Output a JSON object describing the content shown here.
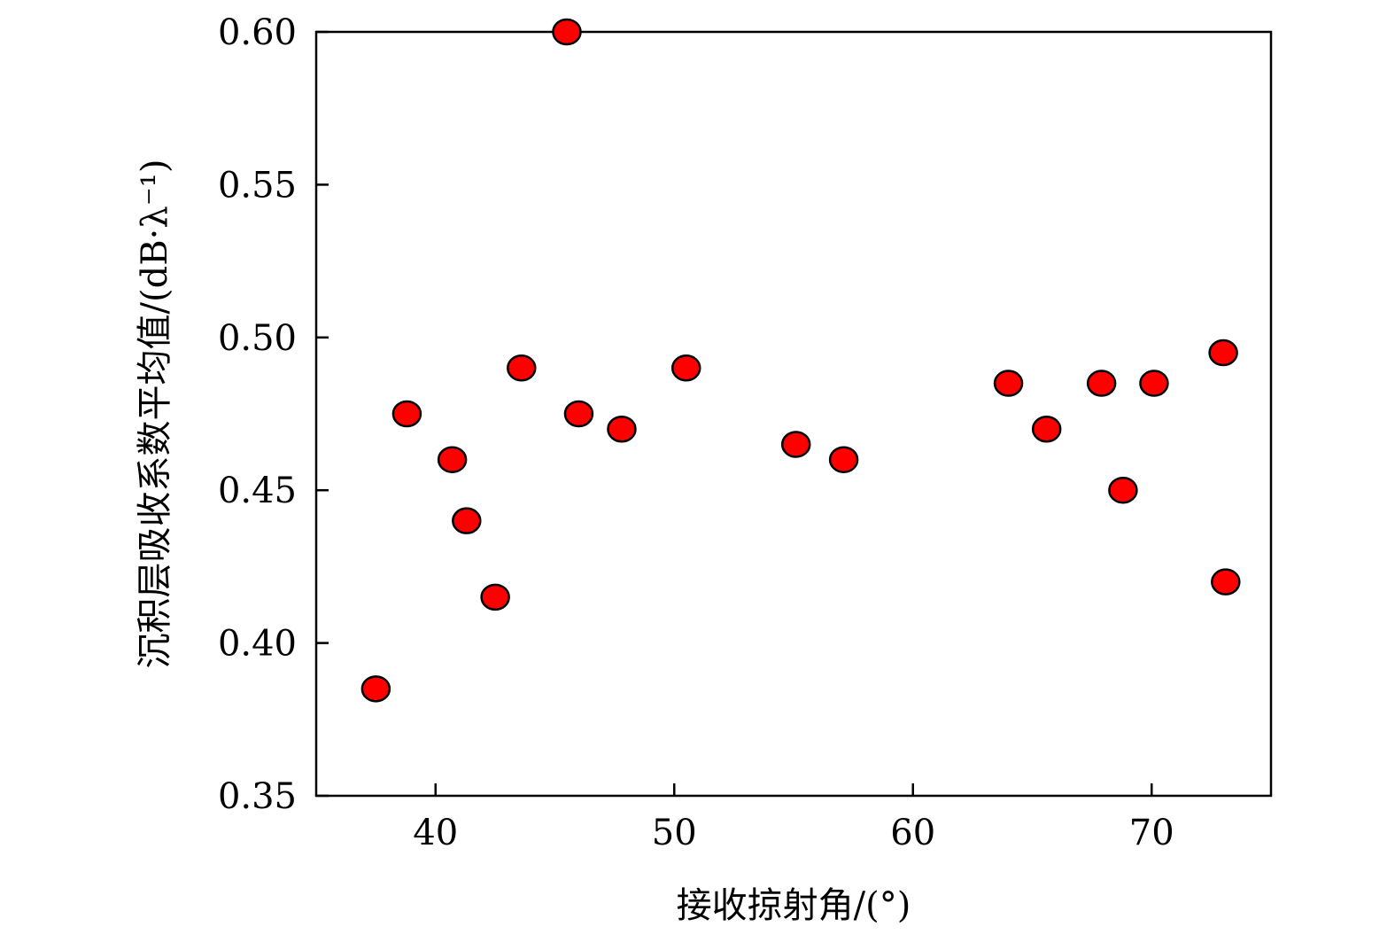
{
  "chart_data": {
    "type": "scatter",
    "xlabel": "接收掠射角/(°)",
    "ylabel": "沉积层吸收系数平均值/(dB·λ⁻¹)",
    "xlim": [
      35,
      75
    ],
    "ylim": [
      0.35,
      0.6
    ],
    "xticks": [
      40,
      50,
      60,
      70
    ],
    "xtick_labels": [
      "40",
      "50",
      "60",
      "70"
    ],
    "yticks": [
      0.35,
      0.4,
      0.45,
      0.5,
      0.55,
      0.6
    ],
    "ytick_labels": [
      "0.35",
      "0.40",
      "0.45",
      "0.50",
      "0.55",
      "0.60"
    ],
    "grid": false,
    "marker_color": "#ff0000",
    "marker_edge_color": "#000000",
    "points": [
      {
        "x": 37.5,
        "y": 0.385
      },
      {
        "x": 38.8,
        "y": 0.475
      },
      {
        "x": 40.7,
        "y": 0.46
      },
      {
        "x": 41.3,
        "y": 0.44
      },
      {
        "x": 42.5,
        "y": 0.415
      },
      {
        "x": 43.6,
        "y": 0.49
      },
      {
        "x": 45.5,
        "y": 0.6
      },
      {
        "x": 46.0,
        "y": 0.475
      },
      {
        "x": 47.8,
        "y": 0.47
      },
      {
        "x": 50.5,
        "y": 0.49
      },
      {
        "x": 55.1,
        "y": 0.465
      },
      {
        "x": 57.1,
        "y": 0.46
      },
      {
        "x": 64.0,
        "y": 0.485
      },
      {
        "x": 65.6,
        "y": 0.47
      },
      {
        "x": 67.9,
        "y": 0.485
      },
      {
        "x": 68.8,
        "y": 0.45
      },
      {
        "x": 70.1,
        "y": 0.485
      },
      {
        "x": 73.0,
        "y": 0.495
      },
      {
        "x": 73.1,
        "y": 0.42
      }
    ]
  }
}
